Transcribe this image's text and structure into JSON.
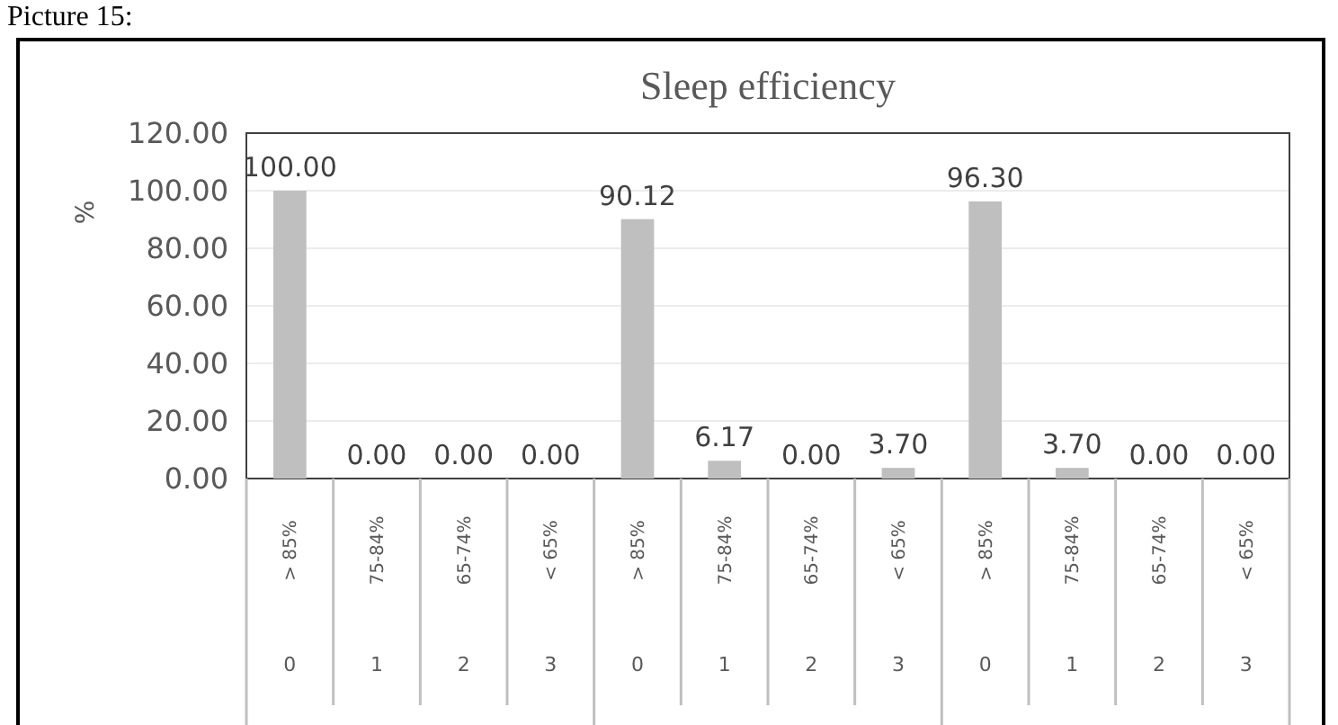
{
  "chart_data": {
    "type": "bar",
    "title": "Sleep efficiency",
    "ylabel": "%",
    "categories": [
      "> 85%",
      "75-84%",
      "65-74%",
      "< 65%",
      "> 85%",
      "75-84%",
      "65-74%",
      "< 65%",
      "> 85%",
      "75-84%",
      "65-74%",
      "< 65%"
    ],
    "values": [
      100.0,
      0.0,
      0.0,
      0.0,
      90.12,
      6.17,
      0.0,
      3.7,
      96.3,
      3.7,
      0.0,
      0.0
    ],
    "color": "#bfbfbf",
    "ylim": [
      0,
      120
    ],
    "yticks": [
      {
        "value": 0,
        "label": "0.00"
      },
      {
        "value": 20,
        "label": "20.00"
      },
      {
        "value": 40,
        "label": "40.00"
      },
      {
        "value": 60,
        "label": "60.00"
      },
      {
        "value": 80,
        "label": "80.00"
      },
      {
        "value": 100,
        "label": "100.00"
      },
      {
        "value": 120,
        "label": "120.00"
      }
    ],
    "grid": "y",
    "value_labels": [
      "100.00",
      "0.00",
      "0.00",
      "0.00",
      "90.12",
      "6.17",
      "0.00",
      "3.70",
      "96.30",
      "3.70",
      "0.00",
      "0.00"
    ],
    "annotations": [
      "Picture 15:",
      "0",
      "1",
      "2",
      "3",
      "0",
      "1",
      "2",
      "3",
      "0",
      "1",
      "2",
      "3"
    ]
  }
}
